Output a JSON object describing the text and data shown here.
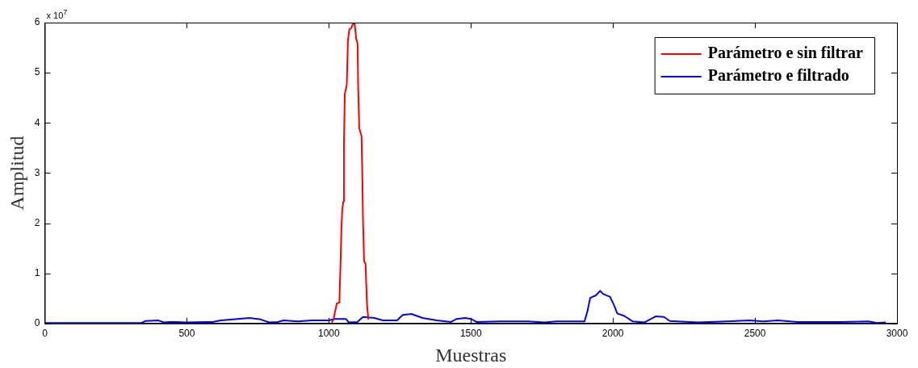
{
  "chart_data": {
    "type": "line",
    "xlabel": "Muestras",
    "ylabel": "Amplitud",
    "annotations": [
      "x 10$^{7}$"
    ],
    "xlim": [
      0,
      3000
    ],
    "xticks": [
      0,
      500,
      1000,
      1500,
      2000,
      2500,
      3000
    ],
    "ylim": [
      0,
      6
    ],
    "yticks": [
      0,
      1,
      2,
      3,
      4,
      5,
      6
    ],
    "legend": "top right",
    "series": [
      {
        "name": "Parámetro e sin filtrar",
        "color": "#ff0000",
        "x": [
          1010,
          1016,
          1028,
          1037,
          1041,
          1044,
          1047,
          1051,
          1053,
          1056,
          1063,
          1067,
          1072,
          1079,
          1084,
          1091,
          1096,
          1101,
          1103,
          1107,
          1115,
          1118,
          1120,
          1124,
          1129,
          1134,
          1139
        ],
        "values": [
          0.02,
          0.08,
          0.4,
          0.42,
          1.19,
          1.87,
          2.27,
          2.43,
          3.57,
          4.57,
          4.76,
          5.63,
          5.87,
          5.89,
          5.97,
          5.97,
          5.68,
          5.58,
          4.73,
          3.89,
          3.73,
          2.87,
          2.08,
          1.24,
          1.19,
          0.4,
          0.08
        ]
      },
      {
        "name": "Parámetro e filtrado",
        "color": "#0000ff",
        "x": [
          0,
          20,
          340,
          355,
          400,
          420,
          440,
          460,
          500,
          590,
          620,
          680,
          720,
          760,
          790,
          820,
          840,
          890,
          940,
          1000,
          1020,
          1060,
          1070,
          1100,
          1120,
          1160,
          1190,
          1240,
          1260,
          1290,
          1330,
          1380,
          1430,
          1450,
          1480,
          1500,
          1520,
          1600,
          1700,
          1760,
          1800,
          1900,
          1910,
          1920,
          1940,
          1955,
          1965,
          1990,
          2005,
          2015,
          2040,
          2070,
          2110,
          2150,
          2180,
          2200,
          2300,
          2400,
          2480,
          2530,
          2580,
          2650,
          2800,
          2900,
          2930,
          2960
        ],
        "values": [
          0.01,
          0.01,
          0.01,
          0.05,
          0.06,
          0.02,
          0.03,
          0.03,
          0.02,
          0.03,
          0.06,
          0.09,
          0.11,
          0.08,
          0.02,
          0.03,
          0.06,
          0.04,
          0.06,
          0.06,
          0.09,
          0.09,
          0.02,
          0.03,
          0.13,
          0.11,
          0.06,
          0.06,
          0.17,
          0.19,
          0.11,
          0.06,
          0.03,
          0.09,
          0.11,
          0.09,
          0.03,
          0.04,
          0.04,
          0.02,
          0.04,
          0.04,
          0.24,
          0.51,
          0.56,
          0.65,
          0.59,
          0.53,
          0.35,
          0.2,
          0.15,
          0.04,
          0.02,
          0.14,
          0.13,
          0.05,
          0.02,
          0.04,
          0.06,
          0.04,
          0.06,
          0.03,
          0.03,
          0.04,
          0.01,
          0.02
        ]
      }
    ]
  }
}
